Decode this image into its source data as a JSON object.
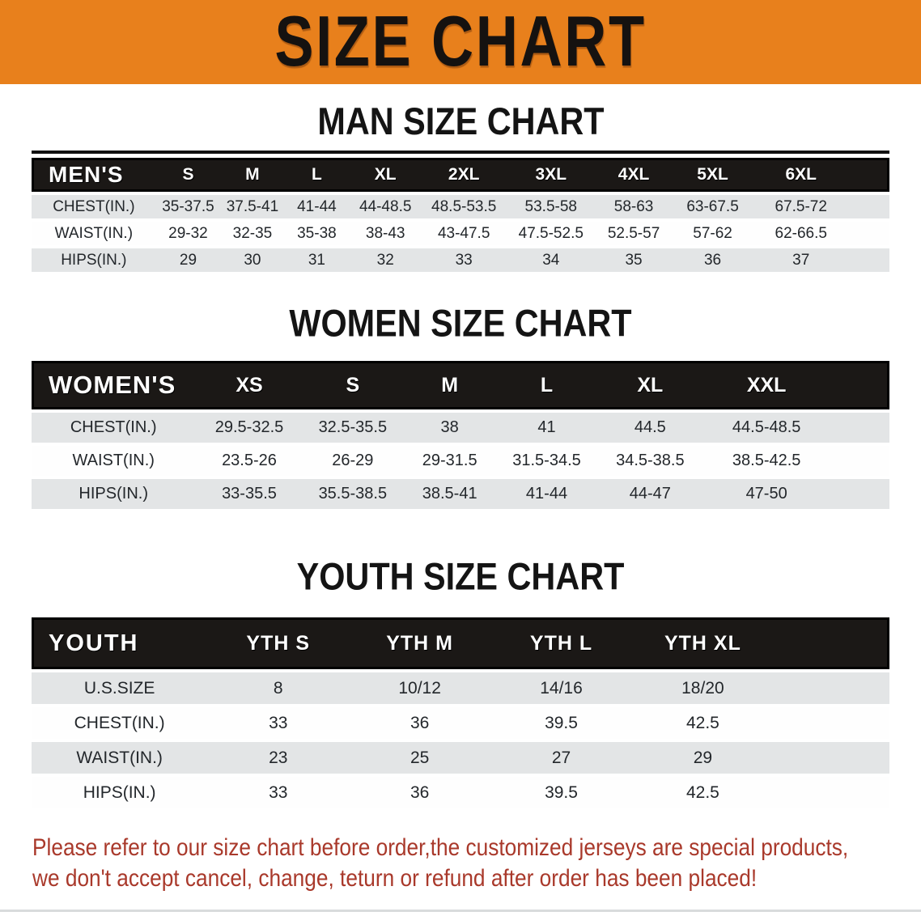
{
  "banner": {
    "title": "SIZE CHART",
    "bg_color": "#E8801C",
    "text_color": "#151210"
  },
  "sections": [
    {
      "id": "men",
      "heading": "MAN SIZE CHART",
      "header_label": "MEN'S",
      "columns": [
        "S",
        "M",
        "L",
        "XL",
        "2XL",
        "3XL",
        "4XL",
        "5XL",
        "6XL"
      ],
      "rows": [
        {
          "label": "CHEST(IN.)",
          "values": [
            "35-37.5",
            "37.5-41",
            "41-44",
            "44-48.5",
            "48.5-53.5",
            "53.5-58",
            "58-63",
            "63-67.5",
            "67.5-72"
          ]
        },
        {
          "label": "WAIST(IN.)",
          "values": [
            "29-32",
            "32-35",
            "35-38",
            "38-43",
            "43-47.5",
            "47.5-52.5",
            "52.5-57",
            "57-62",
            "62-66.5"
          ]
        },
        {
          "label": "HIPS(IN.)",
          "values": [
            "29",
            "30",
            "31",
            "32",
            "33",
            "34",
            "35",
            "36",
            "37"
          ]
        }
      ]
    },
    {
      "id": "women",
      "heading": "WOMEN SIZE CHART",
      "header_label": "WOMEN'S",
      "columns": [
        "XS",
        "S",
        "M",
        "L",
        "XL",
        "XXL"
      ],
      "rows": [
        {
          "label": "CHEST(IN.)",
          "values": [
            "29.5-32.5",
            "32.5-35.5",
            "38",
            "41",
            "44.5",
            "44.5-48.5"
          ]
        },
        {
          "label": "WAIST(IN.)",
          "values": [
            "23.5-26",
            "26-29",
            "29-31.5",
            "31.5-34.5",
            "34.5-38.5",
            "38.5-42.5"
          ]
        },
        {
          "label": "HIPS(IN.)",
          "values": [
            "33-35.5",
            "35.5-38.5",
            "38.5-41",
            "41-44",
            "44-47",
            "47-50"
          ]
        }
      ]
    },
    {
      "id": "youth",
      "heading": "YOUTH SIZE CHART",
      "header_label": "YOUTH",
      "columns": [
        "YTH S",
        "YTH M",
        "YTH L",
        "YTH XL"
      ],
      "rows": [
        {
          "label": "U.S.SIZE",
          "values": [
            "8",
            "10/12",
            "14/16",
            "18/20"
          ]
        },
        {
          "label": "CHEST(IN.)",
          "values": [
            "33",
            "36",
            "39.5",
            "42.5"
          ]
        },
        {
          "label": "WAIST(IN.)",
          "values": [
            "23",
            "25",
            "27",
            "29"
          ]
        },
        {
          "label": "HIPS(IN.)",
          "values": [
            "33",
            "36",
            "39.5",
            "42.5"
          ]
        }
      ]
    }
  ],
  "footnote": {
    "color": "#A9392B",
    "lines": [
      "Please refer to our size chart before order,the customized jerseys are special products,",
      "we don't accept cancel, change, teturn or refund after order has been placed!"
    ]
  }
}
